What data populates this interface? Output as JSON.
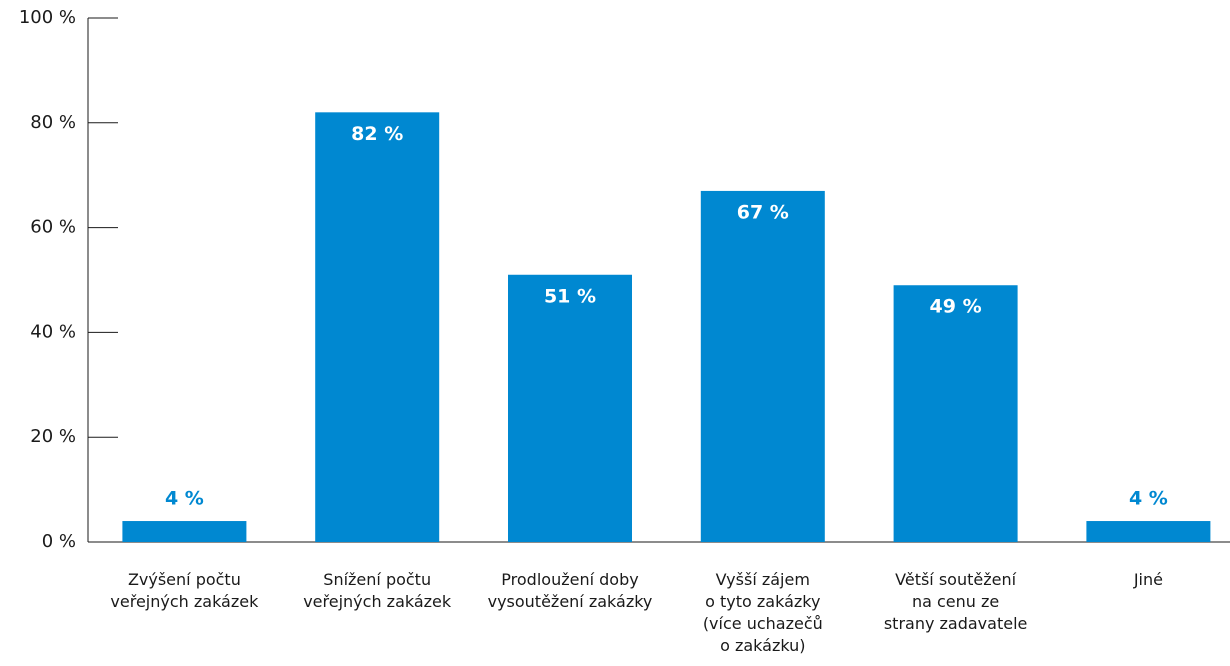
{
  "chart_data": {
    "type": "bar",
    "categories": [
      "Zvýšení počtu\nveřejných zakázek",
      "Snížení počtu\nveřejných zakázek",
      "Prodloužení doby\nvysoutěžení zakázky",
      "Vyšší zájem\no tyto zakázky\n(více uchazečů\no zakázku)",
      "Větší soutěžení\nna cenu ze\nstrany zadavatele",
      "Jiné"
    ],
    "values": [
      4,
      82,
      51,
      67,
      49,
      4
    ],
    "value_labels": [
      "4 %",
      "82 %",
      "51 %",
      "67 %",
      "49 %",
      "4 %"
    ],
    "color": "#0088d1",
    "ylim": [
      0,
      100
    ],
    "yticks": [
      {
        "value": 0,
        "label": "0 %"
      },
      {
        "value": 20,
        "label": "20 %"
      },
      {
        "value": 40,
        "label": "40 %"
      },
      {
        "value": 60,
        "label": "60 %"
      },
      {
        "value": 80,
        "label": "80 %"
      },
      {
        "value": 100,
        "label": "100 %"
      }
    ]
  }
}
